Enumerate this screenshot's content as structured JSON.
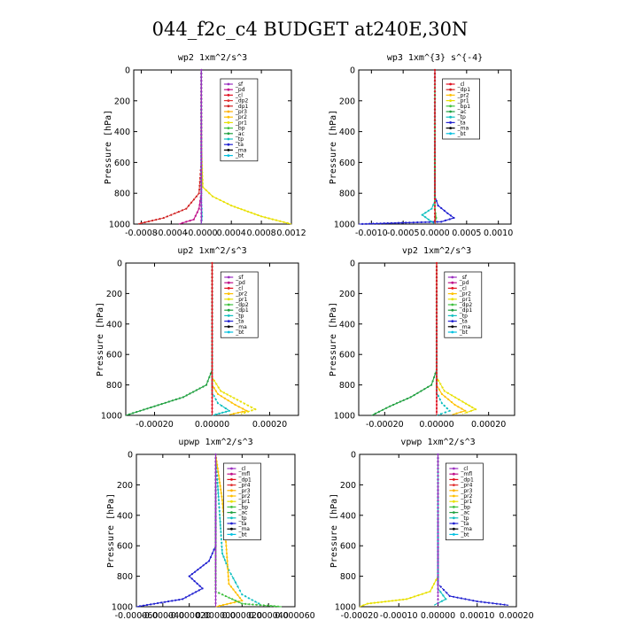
{
  "figure": {
    "title": "044_f2c_c4  BUDGET at240E,30N"
  },
  "chart_data": [
    {
      "type": "line",
      "title": "wp2  1xm^2/s^3",
      "ylabel": "Pressure [hPa]",
      "xlim": [
        -0.0009,
        0.0012
      ],
      "ylim": [
        1000,
        0
      ],
      "x_ticks": [
        -0.0008,
        -0.0004,
        0.0,
        0.0004,
        0.0008,
        0.0012
      ],
      "x_tick_labels": [
        "-0.0008",
        "-0.0004",
        "-0.0000",
        "0.0004",
        "0.0008",
        "0.0012"
      ],
      "y_ticks": [
        0,
        200,
        400,
        600,
        800,
        1000
      ],
      "y_tick_labels": [
        "0",
        "200",
        "400",
        "600",
        "800",
        "1000"
      ],
      "legend": [
        "_sf",
        "_pd",
        "_cl",
        "_dp2",
        "_dp1",
        "_pr3",
        "_pr2",
        "_pr1",
        "_bp",
        "_ac",
        "_tp",
        "_ta",
        "_ma",
        "_bt"
      ],
      "legend_colors": [
        "#9b30c0",
        "#c0108a",
        "#e01020",
        "#e03030",
        "#d02020",
        "#ffb000",
        "#ffc000",
        "#e8e000",
        "#40c040",
        "#20a040",
        "#10c0c0",
        "#2020d0",
        "#000000",
        "#00c0e0"
      ],
      "series": [
        {
          "name": "_pr1",
          "points": [
            [
              0,
              0
            ],
            [
              0,
              500
            ],
            [
              2e-05,
              760
            ],
            [
              0.00015,
              820
            ],
            [
              0.0004,
              880
            ],
            [
              0.0008,
              950
            ],
            [
              0.0012,
              1000
            ]
          ]
        },
        {
          "name": "_dp1",
          "points": [
            [
              0,
              0
            ],
            [
              0,
              600
            ],
            [
              -3e-05,
              800
            ],
            [
              -0.0002,
              900
            ],
            [
              -0.0005,
              960
            ],
            [
              -0.00085,
              1000
            ]
          ]
        },
        {
          "name": "_pd",
          "points": [
            [
              0,
              0
            ],
            [
              0,
              800
            ],
            [
              -3e-05,
              900
            ],
            [
              -0.0001,
              970
            ],
            [
              -0.0003,
              1000
            ]
          ]
        },
        {
          "name": "_tp",
          "points": [
            [
              0,
              0
            ],
            [
              0,
              850
            ],
            [
              1e-05,
              950
            ],
            [
              0,
              1000
            ]
          ]
        },
        {
          "name": "_sf",
          "points": [
            [
              0,
              0
            ],
            [
              0,
              1000
            ]
          ]
        }
      ]
    },
    {
      "type": "line",
      "title": "wp3  1xm^{3} s^{-4}",
      "ylabel": "Pressure [hPa]",
      "xlim": [
        -0.0012,
        0.0012
      ],
      "ylim": [
        1000,
        0
      ],
      "x_ticks": [
        -0.001,
        -0.0005,
        0.0,
        0.0005,
        0.001
      ],
      "x_tick_labels": [
        "-0.0010",
        "-0.0005",
        "0.0000",
        "0.0005",
        "0.0010"
      ],
      "y_ticks": [
        0,
        200,
        400,
        600,
        800,
        1000
      ],
      "y_tick_labels": [
        "0",
        "200",
        "400",
        "600",
        "800",
        "1000"
      ],
      "legend": [
        "_cl",
        "_dp1",
        "_pr2",
        "_pr1",
        "_bp1",
        "_ac",
        "_tp",
        "_ta",
        "_ma",
        "_bt"
      ],
      "legend_colors": [
        "#e01020",
        "#d02020",
        "#ffc000",
        "#e8e000",
        "#40c040",
        "#20a040",
        "#10c0c0",
        "#2020d0",
        "#000000",
        "#00c0e0"
      ],
      "series": [
        {
          "name": "_ta",
          "points": [
            [
              0,
              0
            ],
            [
              0,
              820
            ],
            [
              5e-05,
              880
            ],
            [
              0.0002,
              930
            ],
            [
              0.0003,
              960
            ],
            [
              0.0001,
              985
            ],
            [
              -0.0004,
              990
            ],
            [
              -0.0012,
              1000
            ]
          ]
        },
        {
          "name": "_tp",
          "points": [
            [
              0,
              0
            ],
            [
              0,
              850
            ],
            [
              -5e-05,
              900
            ],
            [
              -0.0002,
              940
            ],
            [
              -0.0001,
              970
            ],
            [
              0,
              1000
            ]
          ]
        },
        {
          "name": "_bp1",
          "points": [
            [
              0,
              0
            ],
            [
              0,
              900
            ],
            [
              2e-05,
              960
            ],
            [
              0,
              1000
            ]
          ]
        },
        {
          "name": "_cl",
          "points": [
            [
              0,
              0
            ],
            [
              0,
              1000
            ]
          ]
        }
      ]
    },
    {
      "type": "line",
      "title": "up2  1xm^2/s^3",
      "ylabel": "Pressure [hPa]",
      "xlim": [
        -0.0003,
        0.0003
      ],
      "ylim": [
        1000,
        0
      ],
      "x_ticks": [
        -0.0002,
        0.0,
        0.0002
      ],
      "x_tick_labels": [
        "-0.00020",
        "0.00000",
        "0.00020"
      ],
      "y_ticks": [
        0,
        200,
        400,
        600,
        800,
        1000
      ],
      "y_tick_labels": [
        "0",
        "200",
        "400",
        "600",
        "800",
        "1000"
      ],
      "legend": [
        "_sf",
        "_pd",
        "_cl",
        "_pr2",
        "_pr1",
        "_dp2",
        "_dp1",
        "_tp",
        "_ta",
        "_ma",
        "_bt"
      ],
      "legend_colors": [
        "#9b30c0",
        "#c0108a",
        "#e01020",
        "#ffc000",
        "#e8e000",
        "#40c040",
        "#20a040",
        "#10c0c0",
        "#2020d0",
        "#000000",
        "#00c0e0"
      ],
      "series": [
        {
          "name": "_dp1",
          "points": [
            [
              0,
              0
            ],
            [
              0,
              700
            ],
            [
              -2e-05,
              800
            ],
            [
              -0.0001,
              880
            ],
            [
              -0.0002,
              940
            ],
            [
              -0.0003,
              1000
            ]
          ]
        },
        {
          "name": "_pr1",
          "points": [
            [
              0,
              0
            ],
            [
              0,
              750
            ],
            [
              3e-05,
              840
            ],
            [
              0.0001,
              910
            ],
            [
              0.00015,
              960
            ],
            [
              0.0001,
              990
            ]
          ]
        },
        {
          "name": "_pr2",
          "points": [
            [
              0,
              0
            ],
            [
              0,
              800
            ],
            [
              2e-05,
              860
            ],
            [
              8e-05,
              930
            ],
            [
              0.00012,
              970
            ],
            [
              6e-05,
              995
            ]
          ]
        },
        {
          "name": "_tp",
          "points": [
            [
              0,
              0
            ],
            [
              0,
              850
            ],
            [
              2e-05,
              920
            ],
            [
              6e-05,
              970
            ],
            [
              0,
              1000
            ]
          ]
        },
        {
          "name": "_cl",
          "points": [
            [
              0,
              0
            ],
            [
              0,
              1000
            ]
          ]
        }
      ]
    },
    {
      "type": "line",
      "title": "vp2  1xm^2/s^3",
      "ylabel": "Pressure [hPa]",
      "xlim": [
        -0.0003,
        0.0003
      ],
      "ylim": [
        1000,
        0
      ],
      "x_ticks": [
        -0.0002,
        0.0,
        0.0002
      ],
      "x_tick_labels": [
        "-0.00020",
        "0.00000",
        "0.00020"
      ],
      "y_ticks": [
        0,
        200,
        400,
        600,
        800,
        1000
      ],
      "y_tick_labels": [
        "0",
        "200",
        "400",
        "600",
        "800",
        "1000"
      ],
      "legend": [
        "_sf",
        "_pd",
        "_cl",
        "_pr2",
        "_pr1",
        "_dp2",
        "_dp1",
        "_tp",
        "_ta",
        "_ma",
        "_bt"
      ],
      "legend_colors": [
        "#9b30c0",
        "#c0108a",
        "#e01020",
        "#ffc000",
        "#e8e000",
        "#40c040",
        "#20a040",
        "#10c0c0",
        "#2020d0",
        "#000000",
        "#00c0e0"
      ],
      "series": [
        {
          "name": "_dp1",
          "points": [
            [
              0,
              0
            ],
            [
              0,
              700
            ],
            [
              -2e-05,
              800
            ],
            [
              -0.0001,
              880
            ],
            [
              -0.00018,
              940
            ],
            [
              -0.00025,
              1000
            ]
          ]
        },
        {
          "name": "_pr1",
          "points": [
            [
              0,
              0
            ],
            [
              0,
              750
            ],
            [
              3e-05,
              840
            ],
            [
              0.0001,
              910
            ],
            [
              0.00015,
              960
            ],
            [
              0.0001,
              990
            ]
          ]
        },
        {
          "name": "_pr2",
          "points": [
            [
              0,
              0
            ],
            [
              0,
              800
            ],
            [
              2e-05,
              860
            ],
            [
              7e-05,
              930
            ],
            [
              0.00011,
              970
            ],
            [
              6e-05,
              995
            ]
          ]
        },
        {
          "name": "_tp",
          "points": [
            [
              0,
              0
            ],
            [
              0,
              850
            ],
            [
              2e-05,
              920
            ],
            [
              5e-05,
              970
            ],
            [
              0,
              1000
            ]
          ]
        },
        {
          "name": "_cl",
          "points": [
            [
              0,
              0
            ],
            [
              0,
              1000
            ]
          ]
        }
      ]
    },
    {
      "type": "line",
      "title": "upwp  1xm^2/s^3",
      "ylabel": "Pressure [hPa]",
      "xlim": [
        -6e-05,
        6e-05
      ],
      "ylim": [
        1000,
        0
      ],
      "x_ticks": [
        -6e-05,
        -4e-05,
        -2e-05,
        0.0,
        2e-05,
        4e-05,
        6e-05
      ],
      "x_tick_labels": [
        "-0.000060",
        "-0.000040",
        "-0.000020",
        "0.000000",
        "0.000020",
        "0.000040",
        "0.000060"
      ],
      "y_ticks": [
        0,
        200,
        400,
        600,
        800,
        1000
      ],
      "y_tick_labels": [
        "0",
        "200",
        "400",
        "600",
        "800",
        "1000"
      ],
      "legend": [
        "_cl",
        "_mfl",
        "_dp1",
        "_pr4",
        "_pr3",
        "_pr2",
        "_pr1",
        "_bp",
        "_ac",
        "_tp",
        "_ta",
        "_ma",
        "_bt"
      ],
      "legend_colors": [
        "#9b30c0",
        "#c0108a",
        "#e01020",
        "#e03030",
        "#ffb000",
        "#ffc000",
        "#e8e000",
        "#40c040",
        "#20a040",
        "#10c0c0",
        "#2020d0",
        "#000000",
        "#00c0e0"
      ],
      "series": [
        {
          "name": "_ta",
          "points": [
            [
              0,
              0
            ],
            [
              0,
              600
            ],
            [
              -5e-06,
              700
            ],
            [
              -2e-05,
              800
            ],
            [
              -1e-05,
              880
            ],
            [
              -2.5e-05,
              950
            ],
            [
              -6e-05,
              1000
            ]
          ]
        },
        {
          "name": "_tp",
          "points": [
            [
              0,
              0
            ],
            [
              5e-06,
              650
            ],
            [
              1e-05,
              760
            ],
            [
              1.5e-05,
              840
            ],
            [
              2e-05,
              920
            ],
            [
              3.5e-05,
              990
            ]
          ]
        },
        {
          "name": "_pr2",
          "points": [
            [
              0,
              0
            ],
            [
              5e-06,
              300
            ],
            [
              8e-06,
              600
            ],
            [
              1e-05,
              850
            ],
            [
              2e-05,
              960
            ],
            [
              0,
              1000
            ]
          ]
        },
        {
          "name": "_bp",
          "points": [
            [
              0,
              0
            ],
            [
              0,
              900
            ],
            [
              2e-05,
              980
            ],
            [
              5e-05,
              1000
            ]
          ]
        },
        {
          "name": "_cl",
          "points": [
            [
              0,
              0
            ],
            [
              0,
              1000
            ]
          ]
        }
      ]
    },
    {
      "type": "line",
      "title": "vpwp  1xm^2/s^3",
      "ylabel": "Pressure [hPa]",
      "xlim": [
        -0.0002,
        0.0002
      ],
      "ylim": [
        1000,
        0
      ],
      "x_ticks": [
        -0.0002,
        -0.0001,
        0.0,
        0.0001,
        0.0002
      ],
      "x_tick_labels": [
        "-0.00020",
        "-0.00010",
        "0.00000",
        "0.00010",
        "0.00020"
      ],
      "y_ticks": [
        0,
        200,
        400,
        600,
        800,
        1000
      ],
      "y_tick_labels": [
        "0",
        "200",
        "400",
        "600",
        "800",
        "1000"
      ],
      "legend": [
        "_cl",
        "_mfl",
        "_dp1",
        "_pr4",
        "_pr3",
        "_pr2",
        "_pr1",
        "_bp",
        "_ac",
        "_tp",
        "_ta",
        "_ma",
        "_bt"
      ],
      "legend_colors": [
        "#9b30c0",
        "#c0108a",
        "#e01020",
        "#e03030",
        "#ffb000",
        "#ffc000",
        "#e8e000",
        "#40c040",
        "#20a040",
        "#10c0c0",
        "#2020d0",
        "#000000",
        "#00c0e0"
      ],
      "series": [
        {
          "name": "_pr1",
          "points": [
            [
              0,
              0
            ],
            [
              0,
              800
            ],
            [
              -2e-05,
              900
            ],
            [
              -8e-05,
              950
            ],
            [
              -0.00018,
              980
            ],
            [
              -0.0002,
              1000
            ]
          ]
        },
        {
          "name": "_ta",
          "points": [
            [
              0,
              0
            ],
            [
              0,
              850
            ],
            [
              3e-05,
              930
            ],
            [
              0.0001,
              965
            ],
            [
              0.00018,
              990
            ]
          ]
        },
        {
          "name": "_tp",
          "points": [
            [
              0,
              0
            ],
            [
              0,
              880
            ],
            [
              2e-05,
              950
            ],
            [
              -1e-05,
              990
            ]
          ]
        },
        {
          "name": "_cl",
          "points": [
            [
              0,
              0
            ],
            [
              0,
              1000
            ]
          ]
        }
      ]
    }
  ]
}
